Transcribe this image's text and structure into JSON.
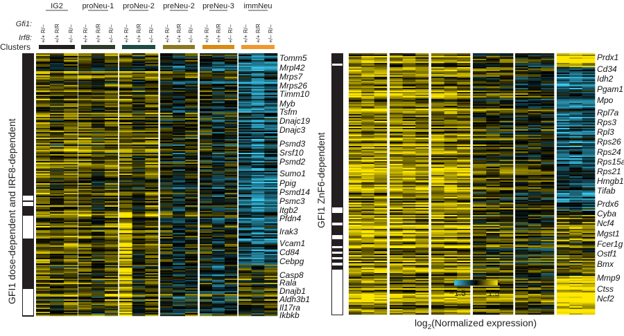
{
  "chart_data": {
    "type": "heatmap",
    "color_scale": {
      "min": -1.5,
      "max": 1.5,
      "low_color": "#38c8ee",
      "mid_color": "#000000",
      "high_color": "#ffe800",
      "tick_labels": [
        "−1.5",
        "1.5"
      ],
      "label_prefix": "log",
      "label_sub": "2",
      "label_suffix": "(Normalized expression)"
    },
    "row_labels": {
      "gfi1": "Gfi1:",
      "irf8": "Irf8:",
      "clusters": "Clusters"
    },
    "clusters": [
      {
        "name": "IG2",
        "color": "#231f20"
      },
      {
        "name": "proNeu-1",
        "color": "#2e3b2b"
      },
      {
        "name": "proNeu-2",
        "color": "#1f4b46"
      },
      {
        "name": "preNeu-2",
        "color": "#8a7a22"
      },
      {
        "name": "preNeu-3",
        "color": "#d98b12"
      },
      {
        "name": "immNeu",
        "color": "#f09830"
      }
    ],
    "genotypes": [
      {
        "gfi1": "R/–",
        "irf8": "+/+"
      },
      {
        "gfi1": "R/R",
        "irf8": "+/+"
      },
      {
        "gfi1": "R/–",
        "irf8": "+/–"
      }
    ],
    "panels": [
      {
        "title": "GFI1 dose-dependent and IRF8-dependent",
        "genes": [
          "Tomm5",
          "Mrpl42",
          "Mrps7",
          "Mrps26",
          "Timm10",
          "Myb",
          "Tsfm",
          "Dnajc19",
          "Dnajc3",
          "Psmd3",
          "Srsf10",
          "Psmd2",
          "Sumo1",
          "Ppig",
          "Psmd14",
          "Psmc3",
          "Itgb2",
          "Pfdn4",
          "Irak3",
          "Vcam1",
          "Cd84",
          "Cebpg",
          "Casp8",
          "Rala",
          "Dnajb1",
          "Aldh3b1",
          "Il17ra",
          "Ikbkb"
        ]
      },
      {
        "title": "GFI1 ZnF6-dependent",
        "genes": [
          "Prdx1",
          "Cd34",
          "Idh2",
          "Pgam1",
          "Mpo",
          "Rpl7a",
          "Rps3",
          "Rpl3",
          "Rps26",
          "Rps24",
          "Rps15a",
          "Rps21",
          "Hmgb1",
          "Tifab",
          "Prdx6",
          "Cyba",
          "Ncf4",
          "Mgst1",
          "Fcer1g",
          "Ostf1",
          "Bmx",
          "Mmp9",
          "Ctss",
          "Ncf2"
        ]
      }
    ]
  }
}
